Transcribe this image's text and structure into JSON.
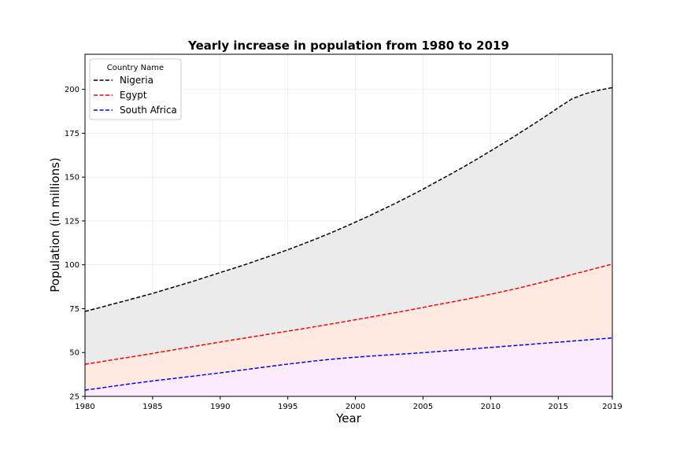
{
  "chart_data": {
    "type": "area",
    "title": "Yearly increase in population from 1980 to 2019",
    "xlabel": "Year",
    "ylabel": "Population (in millions)",
    "xlim": [
      1980,
      2019
    ],
    "ylim": [
      25,
      220
    ],
    "x_ticks": [
      1980,
      1985,
      1990,
      1995,
      2000,
      2005,
      2010,
      2015,
      2019
    ],
    "y_ticks": [
      25,
      50,
      75,
      100,
      125,
      150,
      175,
      200
    ],
    "grid": true,
    "legend": {
      "title": "Country Name",
      "placement": "top-left"
    },
    "x": [
      1980,
      1981,
      1982,
      1983,
      1984,
      1985,
      1986,
      1987,
      1988,
      1989,
      1990,
      1991,
      1992,
      1993,
      1994,
      1995,
      1996,
      1997,
      1998,
      1999,
      2000,
      2001,
      2002,
      2003,
      2004,
      2005,
      2006,
      2007,
      2008,
      2009,
      2010,
      2011,
      2012,
      2013,
      2014,
      2015,
      2016,
      2017,
      2018,
      2019
    ],
    "series": [
      {
        "name": "Nigeria",
        "line_color": "#000000",
        "fill_color": "#ebebeb",
        "values": [
          73.4,
          75.4,
          77.5,
          79.5,
          81.6,
          83.7,
          86.0,
          88.3,
          90.6,
          93.1,
          95.6,
          98.0,
          100.5,
          103.2,
          105.8,
          108.6,
          111.5,
          114.5,
          117.6,
          120.9,
          124.3,
          127.8,
          131.5,
          135.2,
          139.1,
          143.1,
          147.3,
          151.5,
          155.8,
          160.3,
          164.9,
          169.6,
          174.4,
          179.3,
          184.3,
          189.5,
          194.5,
          197.5,
          199.5,
          201.0
        ]
      },
      {
        "name": "Egypt",
        "line_color": "#ff0000",
        "fill_color": "#ffe9e0",
        "values": [
          43.3,
          44.5,
          45.8,
          47.0,
          48.2,
          49.5,
          50.8,
          52.1,
          53.4,
          54.7,
          56.0,
          57.2,
          58.5,
          59.7,
          61.0,
          62.2,
          63.4,
          64.7,
          66.0,
          67.3,
          68.7,
          70.0,
          71.4,
          72.8,
          74.2,
          75.7,
          77.2,
          78.6,
          80.1,
          81.6,
          83.2,
          84.9,
          86.6,
          88.5,
          90.4,
          92.4,
          94.4,
          96.4,
          98.4,
          100.4
        ]
      },
      {
        "name": "South Africa",
        "line_color": "#0000ff",
        "fill_color": "#fcebfc",
        "values": [
          28.6,
          29.6,
          30.7,
          31.8,
          32.8,
          33.8,
          34.7,
          35.6,
          36.5,
          37.5,
          38.4,
          39.4,
          40.4,
          41.4,
          42.4,
          43.4,
          44.3,
          45.2,
          46.0,
          46.7,
          47.3,
          47.9,
          48.4,
          48.9,
          49.4,
          49.9,
          50.5,
          51.1,
          51.7,
          52.3,
          52.9,
          53.5,
          54.1,
          54.7,
          55.3,
          55.9,
          56.5,
          57.1,
          57.7,
          58.3
        ]
      }
    ]
  }
}
